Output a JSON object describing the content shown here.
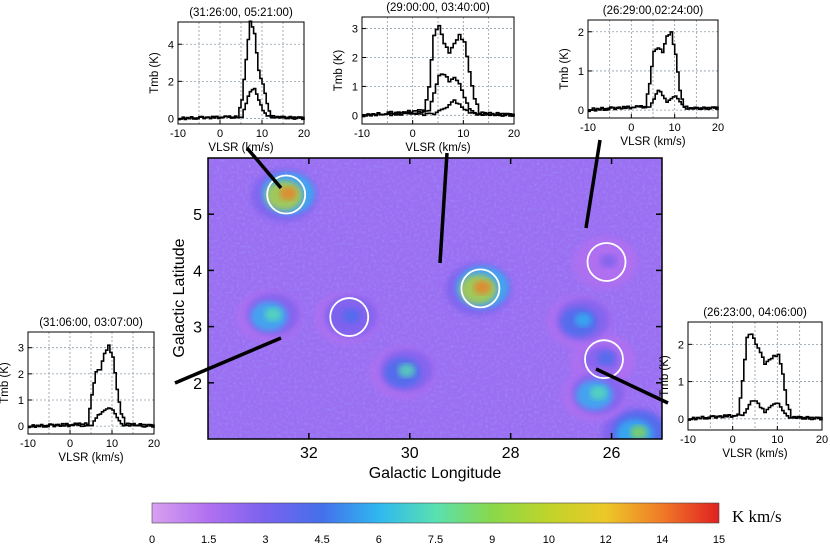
{
  "chart_data": [
    {
      "type": "heatmap",
      "panel": "map",
      "xlabel": "Galactic Longitude",
      "ylabel": "Galactic Latitude",
      "xlim": [
        34,
        25
      ],
      "ylim": [
        1,
        6
      ],
      "xticks": [
        32,
        30,
        28,
        26
      ],
      "yticks": [
        2,
        3,
        4,
        5
      ],
      "colorbar": {
        "unit": "K km/s",
        "range": [
          0,
          15
        ],
        "ticks": [
          "0",
          "1.5",
          "3",
          "4.5",
          "6",
          "7.5",
          "9",
          "10",
          "12",
          "14",
          "15"
        ],
        "colors": [
          "#d8a0f0",
          "#b070f0",
          "#7a62ee",
          "#4470ec",
          "#2fb8f0",
          "#58e0b0",
          "#8ad84a",
          "#c0d42a",
          "#ecc828",
          "#f07a28",
          "#e02020"
        ]
      },
      "regions": [
        {
          "l": 32.45,
          "b": 5.35,
          "peak": 14
        },
        {
          "l": 28.6,
          "b": 3.68,
          "peak": 14
        },
        {
          "l": 31.2,
          "b": 3.17,
          "peak": 5
        },
        {
          "l": 26.1,
          "b": 4.15,
          "peak": 3
        },
        {
          "l": 26.15,
          "b": 2.42,
          "peak": 4
        },
        {
          "l": 32.75,
          "b": 3.2,
          "peak": 8
        },
        {
          "l": 30.1,
          "b": 2.2,
          "peak": 7
        },
        {
          "l": 25.5,
          "b": 1.1,
          "peak": 9
        },
        {
          "l": 26.3,
          "b": 1.8,
          "peak": 8
        },
        {
          "l": 26.6,
          "b": 3.1,
          "peak": 6
        }
      ],
      "circles": [
        {
          "l": 32.45,
          "b": 5.35
        },
        {
          "l": 28.6,
          "b": 3.68
        },
        {
          "l": 31.2,
          "b": 3.17
        },
        {
          "l": 26.1,
          "b": 4.15
        },
        {
          "l": 26.15,
          "b": 2.42
        }
      ]
    },
    {
      "type": "line",
      "panel": "spec-31-26",
      "title": "(31:26:00, 05:21:00)",
      "xlabel": "VLSR (km/s)",
      "ylabel": "Tmb (K)",
      "xlim": [
        -10,
        20
      ],
      "ylim": [
        -0.3,
        5.2
      ],
      "xticks": [
        -10,
        0,
        10,
        20
      ],
      "yticks": [
        0,
        2,
        4
      ],
      "series": [
        {
          "name": "line1",
          "x": [
            -10,
            4,
            5,
            6,
            7,
            8,
            9,
            10,
            11,
            12,
            20
          ],
          "y": [
            0,
            0.1,
            1.0,
            3.2,
            5.3,
            4.6,
            2.6,
            1.8,
            0.8,
            0.1,
            0
          ]
        },
        {
          "name": "line2",
          "x": [
            -10,
            5,
            6,
            7,
            8,
            9,
            10,
            11,
            20
          ],
          "y": [
            0,
            0.1,
            0.8,
            1.5,
            1.6,
            1.0,
            0.4,
            0.1,
            0
          ]
        }
      ]
    },
    {
      "type": "line",
      "panel": "spec-29-00",
      "title": "(29:00:00, 03:40:00)",
      "xlabel": "VLSR (km/s)",
      "ylabel": "Tmb (K)",
      "xlim": [
        -10,
        20
      ],
      "ylim": [
        -0.3,
        3.4
      ],
      "xticks": [
        -10,
        0,
        10,
        20
      ],
      "yticks": [
        0,
        1,
        2,
        3
      ],
      "series": [
        {
          "name": "line1",
          "x": [
            -10,
            2,
            3,
            4,
            5,
            6,
            7,
            8,
            9,
            10,
            11,
            12,
            13,
            20
          ],
          "y": [
            0,
            0.1,
            1.0,
            2.8,
            3.1,
            2.5,
            2.2,
            2.5,
            2.8,
            2.5,
            1.5,
            0.6,
            0.1,
            0
          ]
        },
        {
          "name": "line2",
          "x": [
            -10,
            3,
            4,
            5,
            6,
            7,
            8,
            9,
            10,
            11,
            12,
            20
          ],
          "y": [
            0,
            0.2,
            0.8,
            1.4,
            1.4,
            1.2,
            1.3,
            1.1,
            0.6,
            0.2,
            0.05,
            0
          ]
        },
        {
          "name": "line3",
          "x": [
            -10,
            4,
            6,
            7,
            8,
            9,
            10,
            12,
            20
          ],
          "y": [
            0,
            0.05,
            0.2,
            0.4,
            0.5,
            0.4,
            0.2,
            0.05,
            0
          ]
        }
      ]
    },
    {
      "type": "line",
      "panel": "spec-26-29",
      "title": "(26:29:00,02:24:00)",
      "xlabel": "VLSR (km/s)",
      "ylabel": "Tmb (K)",
      "xlim": [
        -10,
        20
      ],
      "ylim": [
        -0.2,
        2.3
      ],
      "xticks": [
        -10,
        0,
        10,
        20
      ],
      "yticks": [
        0,
        1,
        2
      ],
      "series": [
        {
          "name": "line1",
          "x": [
            -10,
            3,
            4,
            5,
            6,
            7,
            8,
            9,
            10,
            11,
            12,
            13,
            20
          ],
          "y": [
            0.02,
            0.1,
            0.7,
            1.5,
            1.6,
            1.5,
            1.9,
            2.0,
            1.4,
            0.5,
            0.1,
            0.05,
            0.05
          ]
        },
        {
          "name": "line2",
          "x": [
            -10,
            4,
            5,
            6,
            7,
            8,
            9,
            10,
            11,
            12,
            20
          ],
          "y": [
            0,
            0.1,
            0.3,
            0.5,
            0.4,
            0.2,
            0.3,
            0.35,
            0.2,
            0.05,
            0.05
          ]
        }
      ]
    },
    {
      "type": "line",
      "panel": "spec-31-06",
      "title": "(31:06:00, 03:07:00)",
      "xlabel": "VLSR (km/s)",
      "ylabel": "Tmb (K)",
      "xlim": [
        -10,
        20
      ],
      "ylim": [
        -0.3,
        3.6
      ],
      "xticks": [
        -10,
        0,
        10,
        20
      ],
      "yticks": [
        0,
        1,
        2,
        3
      ],
      "series": [
        {
          "name": "line1",
          "x": [
            -10,
            4,
            5,
            6,
            7,
            8,
            9,
            10,
            11,
            12,
            13,
            20
          ],
          "y": [
            0,
            0.1,
            1.2,
            2.1,
            2.2,
            2.8,
            3.1,
            2.6,
            1.4,
            0.5,
            0.1,
            0
          ]
        },
        {
          "name": "line2",
          "x": [
            -10,
            5,
            6,
            7,
            8,
            9,
            10,
            11,
            12,
            20
          ],
          "y": [
            0,
            0.05,
            0.3,
            0.5,
            0.6,
            0.7,
            0.6,
            0.3,
            0.05,
            0
          ]
        }
      ]
    },
    {
      "type": "line",
      "panel": "spec-26-23",
      "title": "(26:23:00, 04:06:00)",
      "xlabel": "VLSR (km/s)",
      "ylabel": "Tmb (K)",
      "xlim": [
        -10,
        20
      ],
      "ylim": [
        -0.3,
        2.6
      ],
      "xticks": [
        -10,
        0,
        10,
        20
      ],
      "yticks": [
        0,
        1,
        2
      ],
      "series": [
        {
          "name": "line1",
          "x": [
            -10,
            1,
            2,
            3,
            4,
            5,
            6,
            7,
            8,
            9,
            10,
            11,
            12,
            13,
            20
          ],
          "y": [
            0,
            0.1,
            1.0,
            2.2,
            2.3,
            2.0,
            1.8,
            1.5,
            1.6,
            1.7,
            1.7,
            1.2,
            0.4,
            0.05,
            0
          ]
        },
        {
          "name": "line2",
          "x": [
            -10,
            2,
            3,
            4,
            5,
            6,
            7,
            8,
            9,
            10,
            11,
            12,
            20
          ],
          "y": [
            0,
            0.1,
            0.3,
            0.5,
            0.5,
            0.3,
            0.2,
            0.3,
            0.4,
            0.4,
            0.2,
            0.05,
            0
          ]
        }
      ]
    }
  ]
}
